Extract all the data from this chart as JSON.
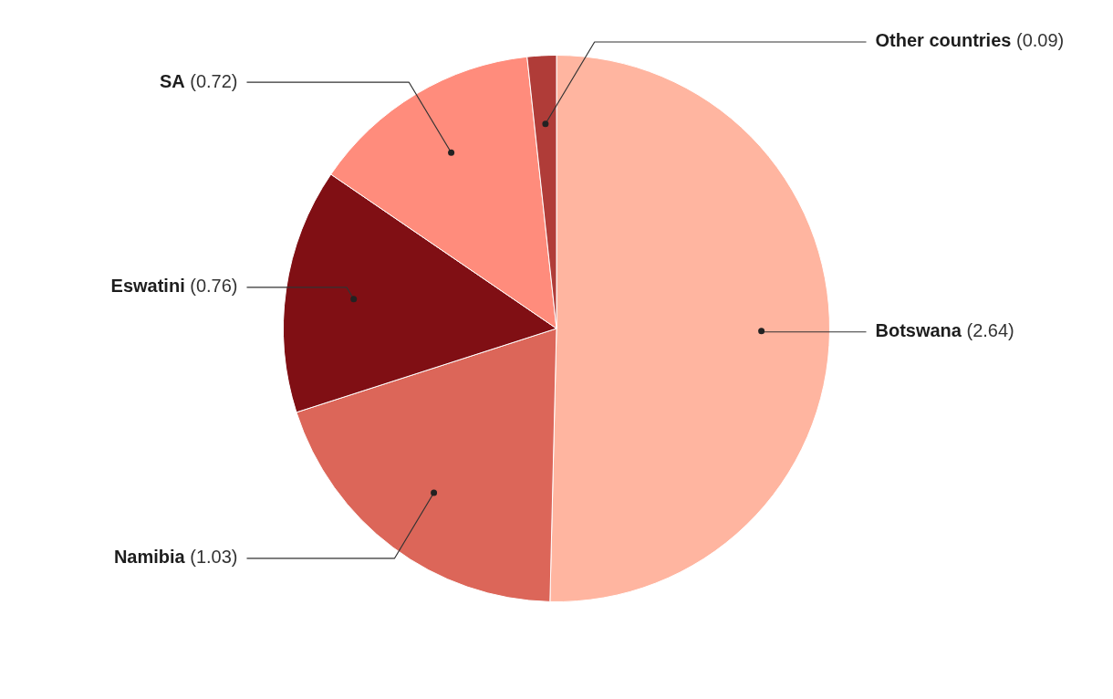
{
  "chart_data": {
    "type": "pie",
    "categories": [
      "Botswana",
      "Namibia",
      "Eswatini",
      "SA",
      "Other countries"
    ],
    "values": [
      2.64,
      1.03,
      0.76,
      0.72,
      0.09
    ],
    "colors": [
      "#ffb5a0",
      "#dc6659",
      "#800f14",
      "#ff8c7c",
      "#b03c38"
    ],
    "value_labels": [
      "(2.64)",
      "(1.03)",
      "(0.76)",
      "(0.72)",
      "(0.09)"
    ],
    "legend": false
  }
}
